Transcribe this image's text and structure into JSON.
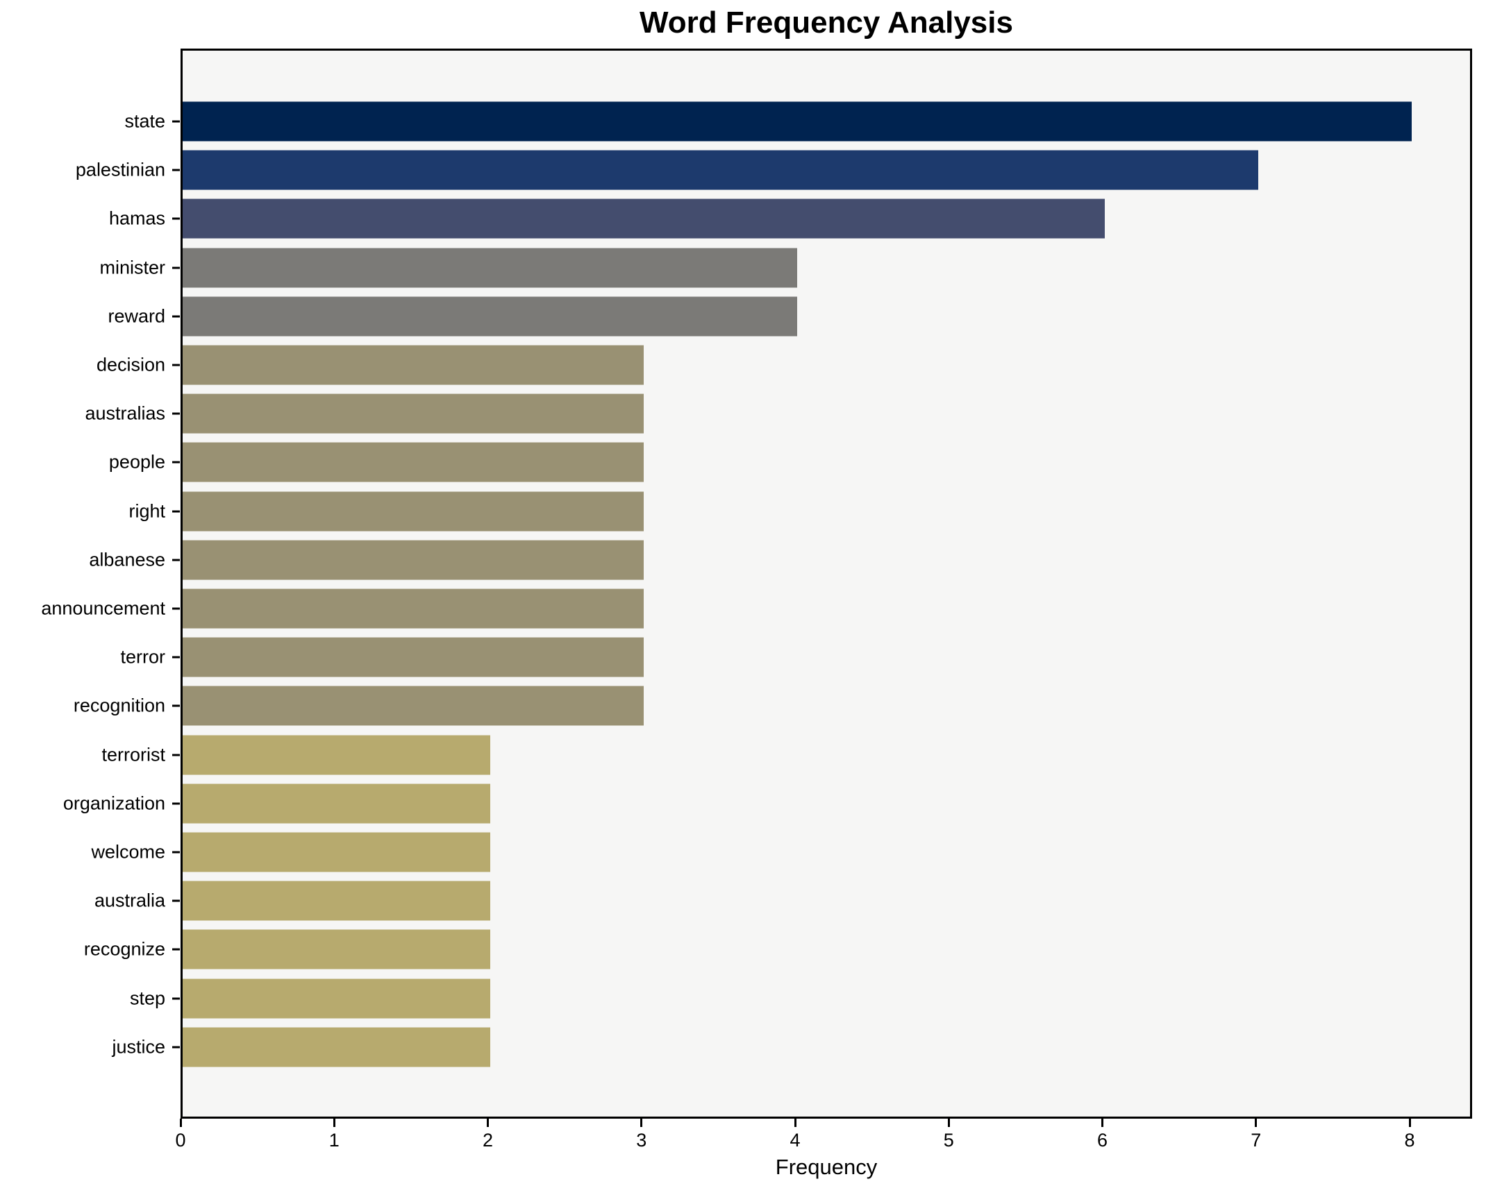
{
  "title": "Word Frequency Analysis",
  "xlabel": "Frequency",
  "chart_data": {
    "type": "bar",
    "orientation": "horizontal",
    "title": "Word Frequency Analysis",
    "xlabel": "Frequency",
    "ylabel": "",
    "xlim": [
      0,
      8.4
    ],
    "x_ticks": [
      0,
      1,
      2,
      3,
      4,
      5,
      6,
      7,
      8
    ],
    "grid": false,
    "legend": false,
    "plot_background": "#f6f6f5",
    "axis_color": "#000000",
    "categories": [
      "state",
      "palestinian",
      "hamas",
      "minister",
      "reward",
      "decision",
      "australias",
      "people",
      "right",
      "albanese",
      "announcement",
      "terror",
      "recognition",
      "terrorist",
      "organization",
      "welcome",
      "australia",
      "recognize",
      "step",
      "justice"
    ],
    "values": [
      8,
      7,
      6,
      4,
      4,
      3,
      3,
      3,
      3,
      3,
      3,
      3,
      3,
      2,
      2,
      2,
      2,
      2,
      2,
      2
    ],
    "bar_colors": [
      "#002350",
      "#1d3a6d",
      "#444d6e",
      "#7b7a77",
      "#7b7a77",
      "#999173",
      "#999173",
      "#999173",
      "#999173",
      "#999173",
      "#999173",
      "#999173",
      "#999173",
      "#b7aa6e",
      "#b7aa6e",
      "#b7aa6e",
      "#b7aa6e",
      "#b7aa6e",
      "#b7aa6e",
      "#b7aa6e"
    ]
  }
}
